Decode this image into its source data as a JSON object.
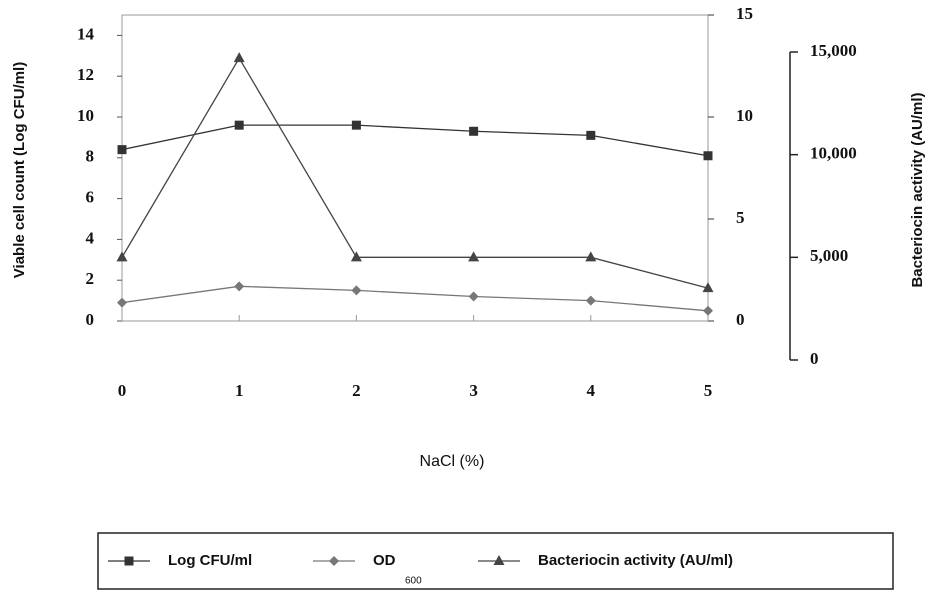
{
  "chart_data": {
    "type": "line",
    "xlabel": "NaCl (%)",
    "ylabel": "Viable cell count (Log CFU/ml)",
    "y3label": "Bacteriocin activity (AU/ml)",
    "categories": [
      "0",
      "1",
      "2",
      "3",
      "4",
      "5"
    ],
    "ylim": [
      0,
      15
    ],
    "yticks": [
      0,
      2,
      4,
      6,
      8,
      10,
      12,
      14
    ],
    "y2lim": [
      0,
      15
    ],
    "y2ticks": [
      0,
      5,
      10,
      15
    ],
    "y3lim": [
      0,
      15000
    ],
    "y3ticks": [
      0,
      {
        "value": 5000,
        "label": "5,000"
      },
      {
        "value": 10000,
        "label": "10,000"
      },
      {
        "value": 15000,
        "label": "15,000"
      }
    ],
    "series": [
      {
        "name": "Log CFU/ml",
        "color": "#333333",
        "marker": "square",
        "axis": "y",
        "values": [
          8.4,
          9.6,
          9.6,
          9.3,
          9.1,
          8.1
        ]
      },
      {
        "name": "OD",
        "name_subscript": "600",
        "color": "#777777",
        "marker": "diamond",
        "axis": "y2",
        "values": [
          0.9,
          1.7,
          1.5,
          1.2,
          1.0,
          0.5
        ]
      },
      {
        "name": "Bacteriocin activity (AU/ml)",
        "color": "#444444",
        "marker": "triangle",
        "axis": "y3",
        "values": [
          5000,
          14700,
          5000,
          5000,
          5000,
          3500
        ]
      }
    ]
  }
}
